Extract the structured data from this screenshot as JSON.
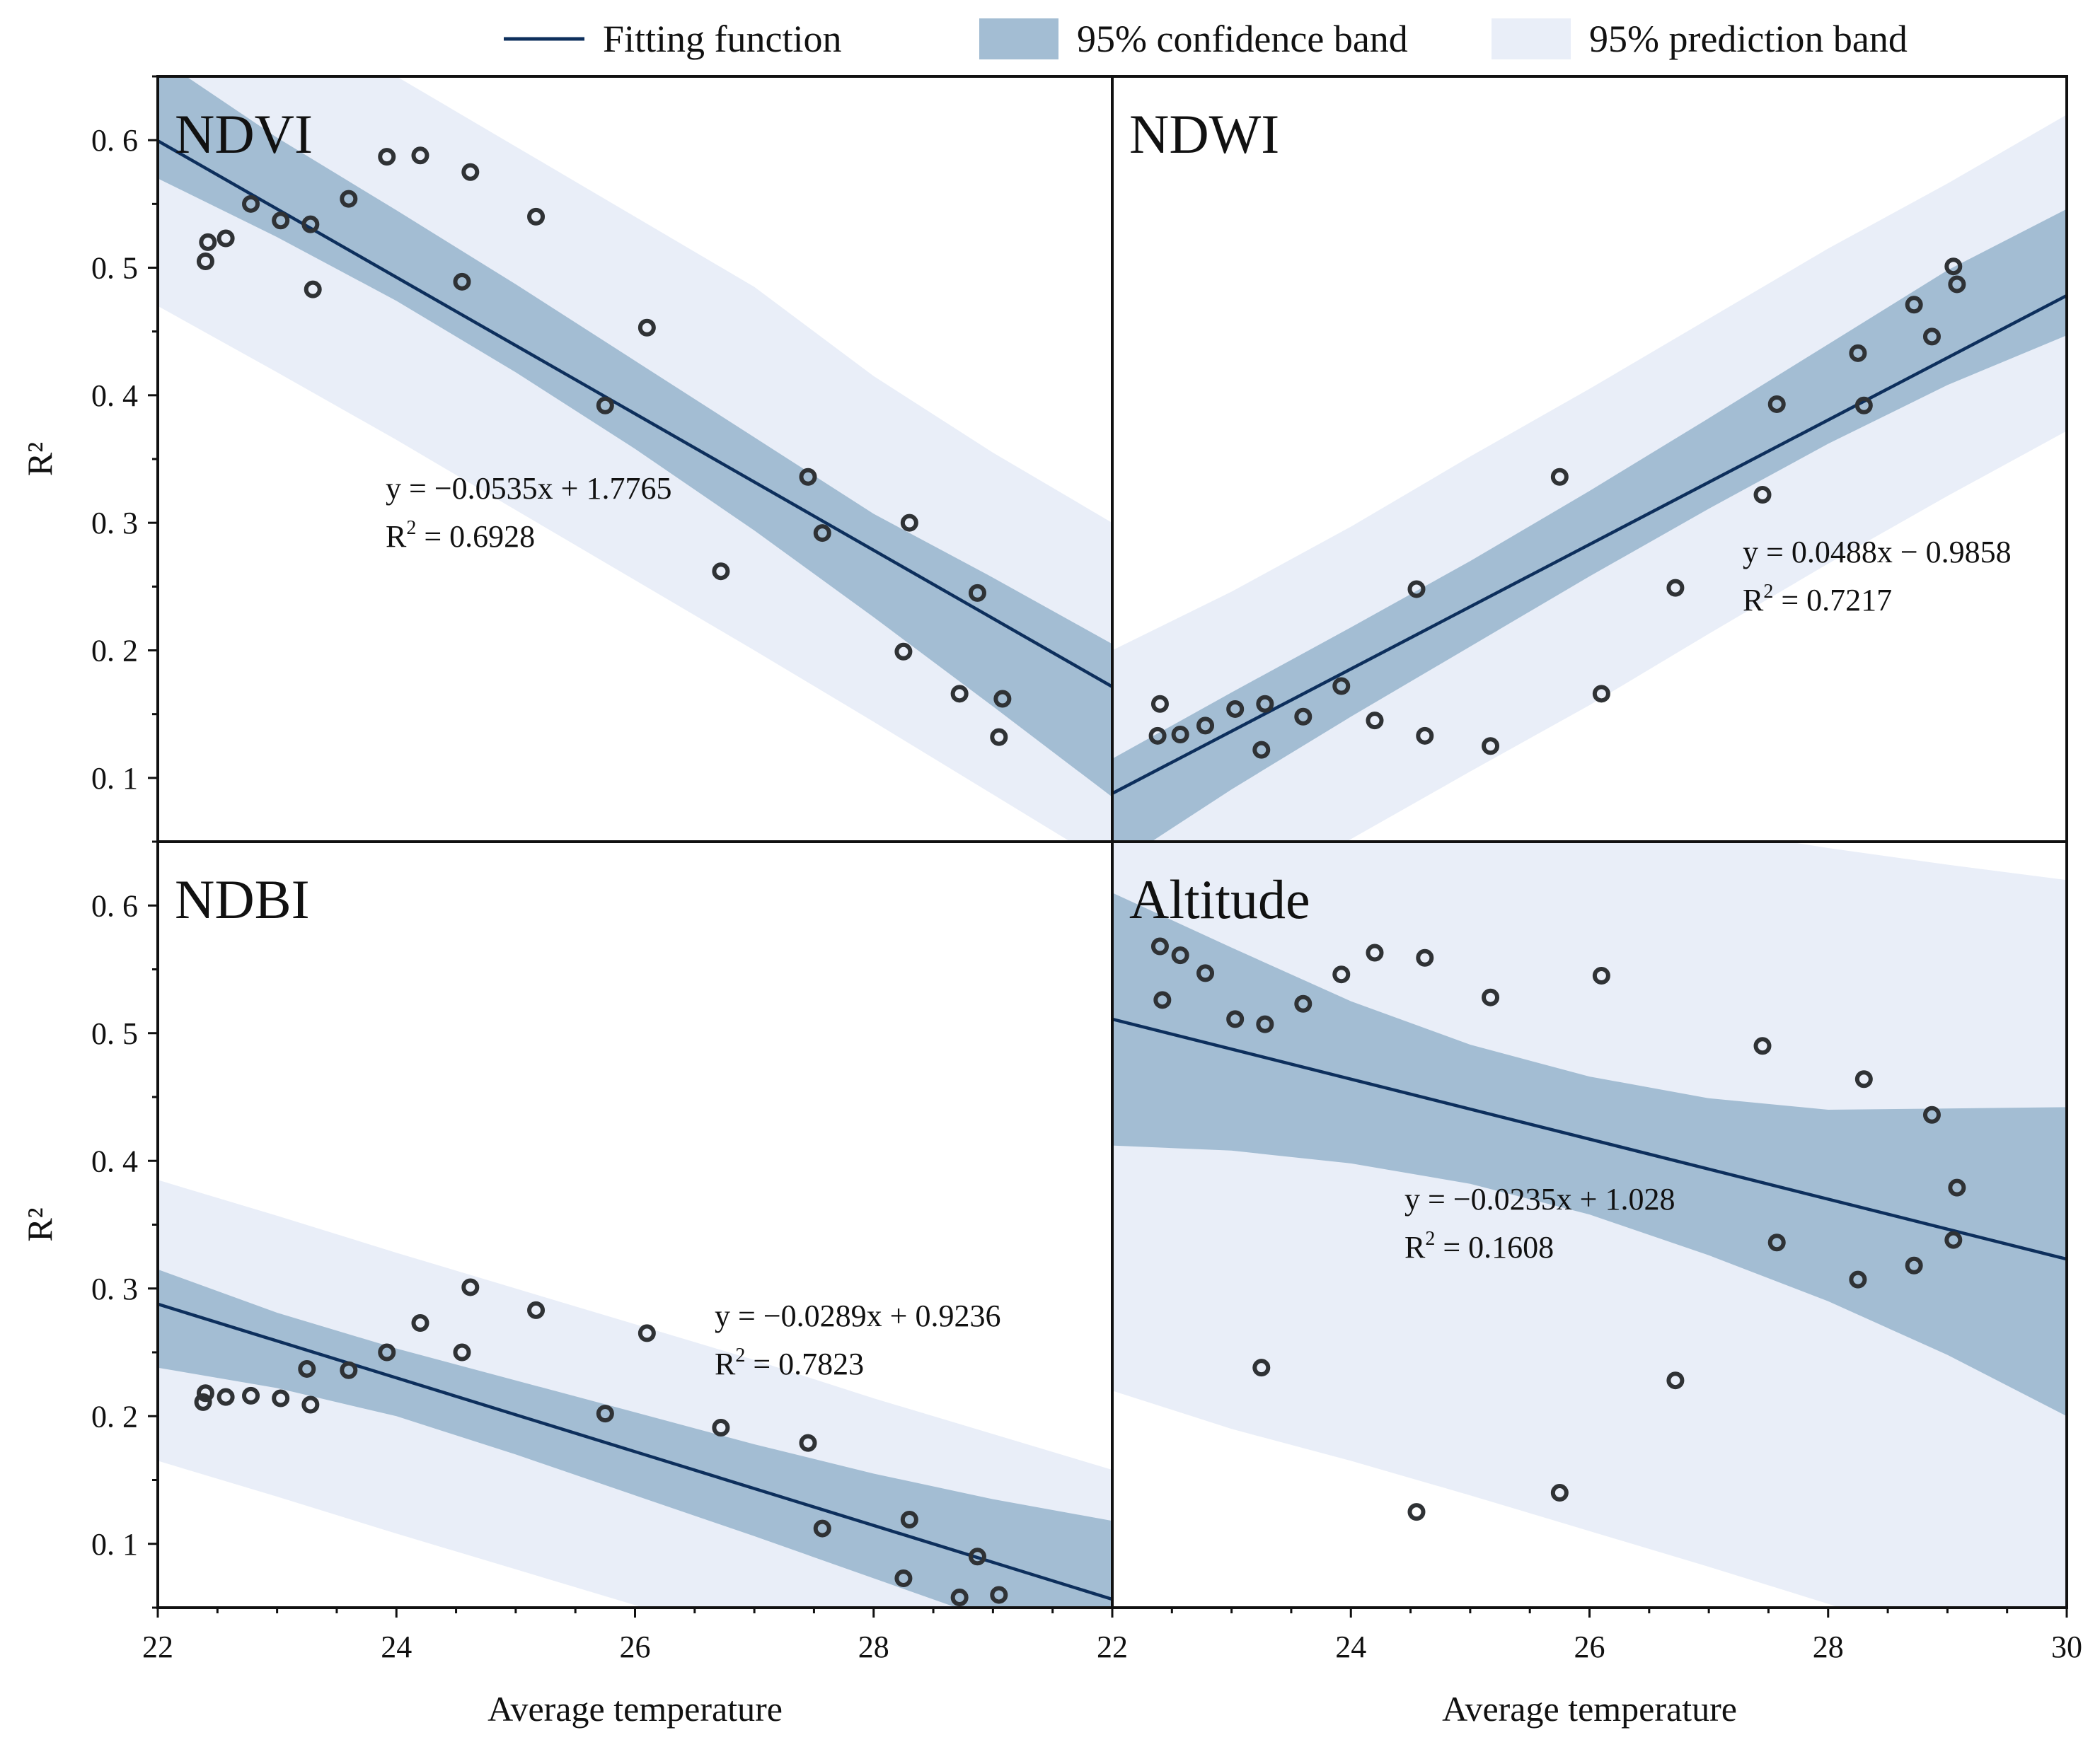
{
  "legend": {
    "fit_label": "Fitting function",
    "conf_label": "95% confidence band",
    "pred_label": "95% prediction band"
  },
  "colors": {
    "fit_line": "#0d2f5c",
    "confidence_band": "#a3bdd3",
    "prediction_band": "#e9eef8",
    "marker": "#2f3235",
    "frame": "#111111"
  },
  "chart_data": [
    {
      "type": "scatter",
      "title": "NDVI",
      "xlabel": "",
      "ylabel": "R²",
      "xlim": [
        22,
        30
      ],
      "ylim": [
        0.05,
        0.65
      ],
      "y_ticks": [
        "0.1",
        "0.2",
        "0.3",
        "0.4",
        "0.5",
        "0.6"
      ],
      "x_ticks": [],
      "equation": "y = −0.0535x + 1.7765",
      "r2_prefix": "R",
      "r2_sup": "2",
      "r2_value": " = 0.6928",
      "fit": {
        "slope": -0.0535,
        "intercept": 1.7765
      },
      "confidence_band": {
        "x": [
          22,
          23,
          24,
          25,
          26,
          27,
          28,
          29,
          30
        ],
        "lower": [
          0.57,
          0.524,
          0.474,
          0.418,
          0.358,
          0.294,
          0.226,
          0.156,
          0.085
        ],
        "upper": [
          0.665,
          0.602,
          0.545,
          0.487,
          0.427,
          0.367,
          0.307,
          0.257,
          0.205
        ]
      },
      "prediction_band": {
        "x": [
          22,
          23,
          24,
          25,
          26,
          27,
          28,
          29,
          30
        ],
        "lower": [
          0.47,
          0.418,
          0.365,
          0.31,
          0.255,
          0.2,
          0.144,
          0.087,
          0.03
        ],
        "upper": [
          0.77,
          0.708,
          0.65,
          0.595,
          0.54,
          0.485,
          0.415,
          0.355,
          0.3
        ]
      },
      "points": {
        "x": [
          22.4,
          22.42,
          22.57,
          22.78,
          23.03,
          23.28,
          23.3,
          23.6,
          23.92,
          24.2,
          24.55,
          24.62,
          25.17,
          25.75,
          26.1,
          26.72,
          27.45,
          27.57,
          28.25,
          28.3,
          28.72,
          28.87,
          29.05,
          29.08
        ],
        "y": [
          0.505,
          0.52,
          0.523,
          0.55,
          0.537,
          0.534,
          0.483,
          0.554,
          0.587,
          0.588,
          0.489,
          0.575,
          0.54,
          0.392,
          0.453,
          0.262,
          0.336,
          0.292,
          0.199,
          0.3,
          0.166,
          0.245,
          0.132,
          0.162
        ]
      }
    },
    {
      "type": "scatter",
      "title": "NDWI",
      "xlabel": "",
      "ylabel": "",
      "xlim": [
        22,
        30
      ],
      "ylim": [
        0.05,
        0.65
      ],
      "y_ticks": [],
      "x_ticks": [],
      "equation": "y = 0.0488x − 0.9858",
      "r2_prefix": "R",
      "r2_sup": "2",
      "r2_value": " = 0.7217",
      "fit": {
        "slope": 0.0488,
        "intercept": -0.9858
      },
      "confidence_band": {
        "x": [
          22,
          23,
          24,
          25,
          26,
          27,
          28,
          29,
          30
        ],
        "lower": [
          0.03,
          0.091,
          0.148,
          0.203,
          0.258,
          0.311,
          0.362,
          0.408,
          0.447
        ],
        "upper": [
          0.115,
          0.167,
          0.218,
          0.27,
          0.325,
          0.382,
          0.44,
          0.498,
          0.546
        ]
      },
      "prediction_band": {
        "x": [
          22,
          23,
          24,
          25,
          26,
          27,
          28,
          29,
          30
        ],
        "lower": [
          -0.05,
          -0.003,
          0.052,
          0.105,
          0.157,
          0.213,
          0.268,
          0.321,
          0.372
        ],
        "upper": [
          0.2,
          0.246,
          0.297,
          0.352,
          0.405,
          0.46,
          0.515,
          0.566,
          0.62
        ]
      },
      "points": {
        "x": [
          22.38,
          22.4,
          22.57,
          22.78,
          23.03,
          23.25,
          23.28,
          23.6,
          23.92,
          24.2,
          24.55,
          24.62,
          25.17,
          25.75,
          26.1,
          26.72,
          27.45,
          27.57,
          28.25,
          28.3,
          28.72,
          28.87,
          29.05,
          29.08
        ],
        "y": [
          0.133,
          0.158,
          0.134,
          0.141,
          0.154,
          0.122,
          0.158,
          0.148,
          0.172,
          0.145,
          0.248,
          0.133,
          0.125,
          0.336,
          0.166,
          0.249,
          0.322,
          0.393,
          0.433,
          0.392,
          0.471,
          0.446,
          0.501,
          0.487
        ]
      }
    },
    {
      "type": "scatter",
      "title": "NDBI",
      "xlabel": "Average temperature",
      "ylabel": "R²",
      "xlim": [
        22,
        30
      ],
      "ylim": [
        0.05,
        0.65
      ],
      "y_ticks": [
        "0.1",
        "0.2",
        "0.3",
        "0.4",
        "0.5",
        "0.6"
      ],
      "x_ticks": [
        "22",
        "24",
        "26",
        "28"
      ],
      "equation": "y = −0.0289x + 0.9236",
      "r2_prefix": "R",
      "r2_sup": "2",
      "r2_value": " = 0.7823",
      "fit": {
        "slope": -0.0289,
        "intercept": 0.9236
      },
      "confidence_band": {
        "x": [
          22,
          23,
          24,
          25,
          26,
          27,
          28,
          29,
          30
        ],
        "lower": [
          0.238,
          0.222,
          0.2,
          0.17,
          0.138,
          0.106,
          0.073,
          0.04,
          0.02
        ],
        "upper": [
          0.315,
          0.281,
          0.253,
          0.228,
          0.203,
          0.178,
          0.155,
          0.135,
          0.118
        ]
      },
      "prediction_band": {
        "x": [
          22,
          23,
          24,
          25,
          26,
          27,
          28,
          29,
          30
        ],
        "lower": [
          0.165,
          0.137,
          0.108,
          0.08,
          0.052,
          0.023,
          -0.005,
          -0.033,
          -0.062
        ],
        "upper": [
          0.385,
          0.357,
          0.328,
          0.3,
          0.272,
          0.244,
          0.214,
          0.186,
          0.158
        ]
      },
      "points": {
        "x": [
          22.38,
          22.4,
          22.57,
          22.78,
          23.03,
          23.25,
          23.28,
          23.6,
          23.92,
          24.2,
          24.55,
          24.62,
          25.17,
          25.75,
          26.1,
          26.72,
          27.45,
          27.57,
          28.25,
          28.3,
          28.72,
          28.87,
          29.05
        ],
        "y": [
          0.211,
          0.218,
          0.215,
          0.216,
          0.214,
          0.237,
          0.209,
          0.236,
          0.25,
          0.273,
          0.25,
          0.301,
          0.283,
          0.202,
          0.265,
          0.191,
          0.179,
          0.112,
          0.073,
          0.119,
          0.058,
          0.09,
          0.06
        ]
      }
    },
    {
      "type": "scatter",
      "title": "Altitude",
      "xlabel": "Average temperature",
      "ylabel": "",
      "xlim": [
        22,
        30
      ],
      "ylim": [
        0.05,
        0.65
      ],
      "y_ticks": [],
      "x_ticks": [
        "22",
        "24",
        "26",
        "28",
        "30"
      ],
      "equation": "y = −0.0235x + 1.028",
      "r2_prefix": "R",
      "r2_sup": "2",
      "r2_value": " = 0.1608",
      "fit": {
        "slope": -0.0235,
        "intercept": 1.028
      },
      "confidence_band": {
        "x": [
          22,
          23,
          24,
          25,
          26,
          27,
          28,
          29,
          30
        ],
        "lower": [
          0.412,
          0.408,
          0.398,
          0.382,
          0.358,
          0.326,
          0.29,
          0.248,
          0.2
        ],
        "upper": [
          0.61,
          0.567,
          0.525,
          0.491,
          0.466,
          0.449,
          0.44,
          0.441,
          0.442
        ]
      },
      "prediction_band": {
        "x": [
          22,
          23,
          24,
          25,
          26,
          27,
          28,
          29,
          30
        ],
        "lower": [
          0.22,
          0.19,
          0.165,
          0.138,
          0.11,
          0.082,
          0.053,
          0.022,
          -0.01
        ],
        "upper": [
          0.8,
          0.765,
          0.73,
          0.703,
          0.678,
          0.66,
          0.645,
          0.632,
          0.62
        ]
      },
      "points": {
        "x": [
          22.4,
          22.42,
          22.57,
          22.78,
          23.03,
          23.25,
          23.28,
          23.6,
          23.92,
          24.2,
          24.55,
          24.62,
          25.17,
          25.75,
          26.1,
          26.72,
          27.45,
          27.57,
          28.25,
          28.3,
          28.72,
          28.87,
          29.05,
          29.08
        ],
        "y": [
          0.568,
          0.526,
          0.561,
          0.547,
          0.511,
          0.238,
          0.507,
          0.523,
          0.546,
          0.563,
          0.125,
          0.559,
          0.528,
          0.14,
          0.545,
          0.228,
          0.49,
          0.336,
          0.307,
          0.464,
          0.318,
          0.436,
          0.338,
          0.379
        ]
      }
    }
  ]
}
